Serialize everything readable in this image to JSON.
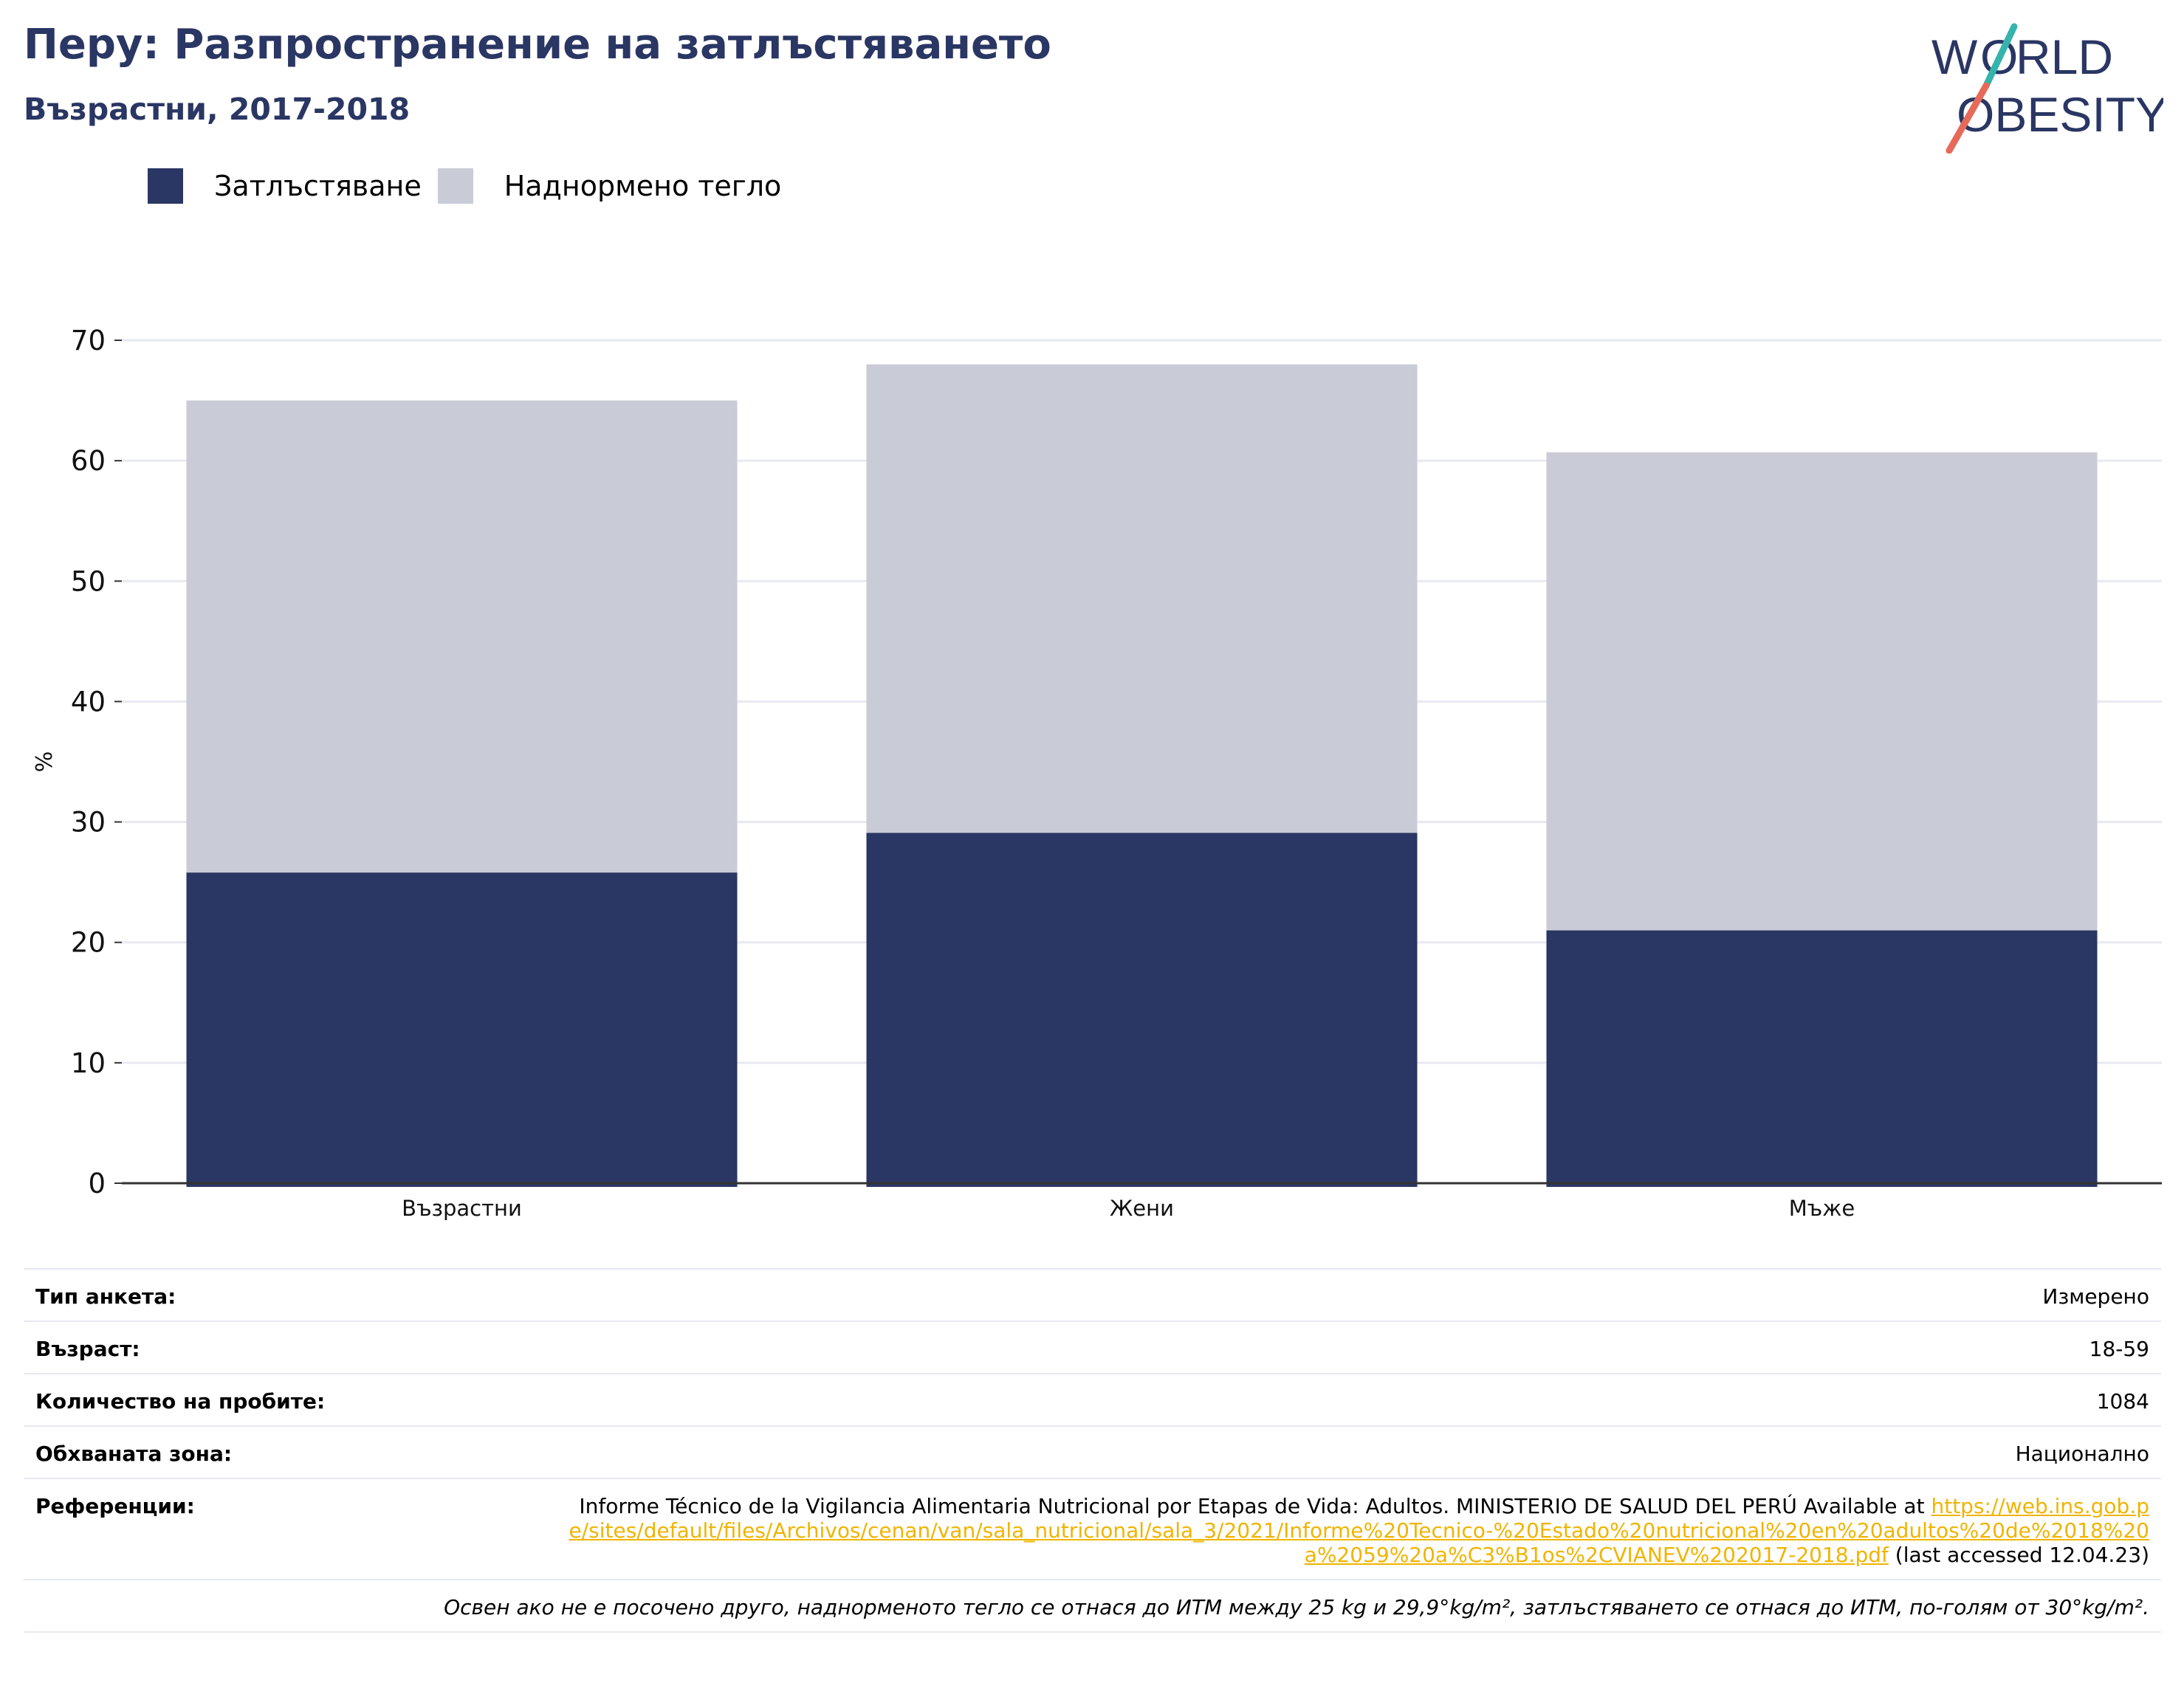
{
  "title": "Перу: Разпространение на затлъстяването",
  "subtitle": "Възрастни, 2017-2018",
  "logo": {
    "line1": "WORLD",
    "line2": "OBESITY"
  },
  "legend": [
    {
      "label": "Затлъстяване",
      "color": "#2a3663"
    },
    {
      "label": "Наднормено тегло",
      "color": "#c9cbd7"
    }
  ],
  "chart_data": {
    "type": "bar",
    "stacked": true,
    "categories": [
      "Възрастни",
      "Жени",
      "Мъже"
    ],
    "series": [
      {
        "name": "Затлъстяване",
        "color": "#2a3663",
        "values": [
          25.8,
          29.1,
          21.0
        ]
      },
      {
        "name": "Наднормено тегло",
        "color": "#c9cbd7",
        "values": [
          39.2,
          38.9,
          39.7
        ]
      }
    ],
    "ylabel": "%",
    "ylim": [
      0,
      70
    ],
    "yticks": [
      0,
      10,
      20,
      30,
      40,
      50,
      60,
      70
    ],
    "grid": true,
    "legend_position": "top-left"
  },
  "info": {
    "survey_type_label": "Тип анкета:",
    "survey_type_value": "Измерено",
    "age_label": "Възраст:",
    "age_value": "18-59",
    "sample_label": "Количество на пробите:",
    "sample_value": "1084",
    "area_label": "Обхваната зона:",
    "area_value": "Национално",
    "references_label": "Референции:",
    "references_text": "Informe Técnico de la Vigilancia Alimentaria Nutricional por Etapas de Vida: Adultos. MINISTERIO DE SALUD DEL PERÚ Available at",
    "references_link": "https://web.ins.gob.pe/sites/default/files/Archivos/cenan/van/sala_nutricional/sala_3/2021/Informe%20Tecnico-%20Estado%20nutricional%20en%20adultos%20de%2018%20a%2059%20a%C3%B1os%2CVIANEV%202017-2018.pdf",
    "references_accessed": "(last accessed 12.04.23)",
    "footnote": "Освен ако не е посочено друго, наднорменото тегло се отнася до ИТМ между 25 kg и 29,9°kg/m², затлъстяването се отнася до ИТМ, по-голям от 30°kg/m²."
  }
}
